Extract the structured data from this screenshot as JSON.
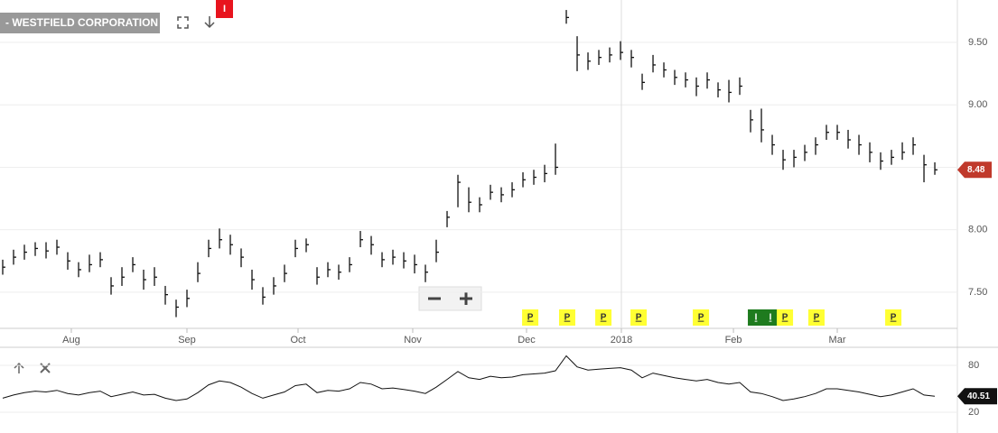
{
  "chart_data": {
    "type": "ohlc",
    "title": "- WESTFIELD CORPORATION",
    "badge": "I",
    "color": "#111111",
    "xlim": [
      -0.25,
      88.08
    ],
    "xticks": [
      {
        "value": 6.33,
        "label": "Aug"
      },
      {
        "value": 17,
        "label": "Sep"
      },
      {
        "value": 27.25,
        "label": "Oct"
      },
      {
        "value": 37.83,
        "label": "Nov"
      },
      {
        "value": 48.33,
        "label": "Dec"
      },
      {
        "value": 57.08,
        "label": "2018"
      },
      {
        "value": 67.42,
        "label": "Feb"
      },
      {
        "value": 77,
        "label": "Mar"
      }
    ],
    "ylim": [
      7.21,
      9.84
    ],
    "yticks": [
      {
        "value": 9.5,
        "label": "9.50"
      },
      {
        "value": 9,
        "label": "9.00"
      },
      {
        "value": 8.5,
        "label": "8.50"
      },
      {
        "value": 8,
        "label": "8.00"
      },
      {
        "value": 7.5,
        "label": "7.50"
      }
    ],
    "high": [
      7.76,
      7.84,
      7.88,
      7.9,
      7.9,
      7.92,
      7.82,
      7.74,
      7.8,
      7.82,
      7.62,
      7.7,
      7.78,
      7.68,
      7.7,
      7.55,
      7.44,
      7.52,
      7.74,
      7.92,
      8.01,
      7.96,
      7.85,
      7.68,
      7.54,
      7.62,
      7.72,
      7.92,
      7.93,
      7.7,
      7.74,
      7.72,
      7.78,
      7.99,
      7.95,
      7.82,
      7.84,
      7.82,
      7.8,
      7.72,
      7.92,
      8.15,
      8.44,
      8.34,
      8.26,
      8.36,
      8.34,
      8.38,
      8.46,
      8.48,
      8.52,
      8.69,
      9.76,
      9.55,
      9.42,
      9.44,
      9.46,
      9.51,
      9.44,
      9.25,
      9.4,
      9.34,
      9.28,
      9.26,
      9.22,
      9.26,
      9.18,
      9.2,
      9.22,
      8.96,
      8.97,
      8.76,
      8.64,
      8.64,
      8.68,
      8.74,
      8.84,
      8.84,
      8.8,
      8.76,
      8.7,
      8.62,
      8.64,
      8.7,
      8.74,
      8.6,
      8.54
    ],
    "low": [
      7.64,
      7.72,
      7.76,
      7.79,
      7.77,
      7.8,
      7.68,
      7.62,
      7.66,
      7.7,
      7.48,
      7.55,
      7.66,
      7.52,
      7.55,
      7.4,
      7.3,
      7.38,
      7.58,
      7.78,
      7.85,
      7.8,
      7.7,
      7.52,
      7.4,
      7.48,
      7.58,
      7.78,
      7.82,
      7.56,
      7.62,
      7.6,
      7.66,
      7.86,
      7.8,
      7.7,
      7.72,
      7.69,
      7.65,
      7.58,
      7.74,
      8.02,
      8.18,
      8.14,
      8.14,
      8.24,
      8.22,
      8.26,
      8.34,
      8.36,
      8.38,
      8.44,
      9.65,
      9.27,
      9.28,
      9.32,
      9.34,
      9.36,
      9.3,
      9.12,
      9.26,
      9.22,
      9.16,
      9.14,
      9.07,
      9.13,
      9.06,
      9.02,
      9.08,
      8.78,
      8.7,
      8.6,
      8.48,
      8.5,
      8.55,
      8.6,
      8.72,
      8.72,
      8.65,
      8.6,
      8.54,
      8.48,
      8.52,
      8.56,
      8.6,
      8.38,
      8.44
    ],
    "close": [
      7.7,
      7.78,
      7.82,
      7.85,
      7.83,
      7.86,
      7.75,
      7.68,
      7.72,
      7.76,
      7.55,
      7.62,
      7.72,
      7.6,
      7.62,
      7.48,
      7.38,
      7.45,
      7.65,
      7.85,
      7.92,
      7.88,
      7.78,
      7.6,
      7.46,
      7.55,
      7.65,
      7.85,
      7.88,
      7.62,
      7.68,
      7.66,
      7.72,
      7.92,
      7.88,
      7.76,
      7.78,
      7.75,
      7.72,
      7.66,
      7.82,
      8.1,
      8.38,
      8.22,
      8.2,
      8.3,
      8.28,
      8.32,
      8.4,
      8.42,
      8.45,
      8.5,
      9.7,
      9.4,
      9.35,
      9.38,
      9.4,
      9.42,
      9.38,
      9.18,
      9.32,
      9.28,
      9.22,
      9.2,
      9.15,
      9.2,
      9.12,
      9.1,
      9.15,
      8.88,
      8.8,
      8.68,
      8.56,
      8.58,
      8.62,
      8.68,
      8.78,
      8.78,
      8.72,
      8.68,
      8.62,
      8.55,
      8.58,
      8.62,
      8.68,
      8.52,
      8.48
    ],
    "last_price": 8.48,
    "last_color": "#c0392b",
    "events": [
      {
        "label": "P",
        "x": 48.67,
        "color": "#ffff33"
      },
      {
        "label": "P",
        "x": 52.08,
        "color": "#ffff33"
      },
      {
        "label": "P",
        "x": 55.42,
        "color": "#ffff33"
      },
      {
        "label": "P",
        "x": 58.67,
        "color": "#ffff33"
      },
      {
        "label": "P",
        "x": 64.42,
        "color": "#ffff33"
      },
      {
        "label": "I",
        "x": 69.5,
        "color": "#1e7b1e"
      },
      {
        "label": "I",
        "x": 70.83,
        "color": "#1e7b1e"
      },
      {
        "label": "P",
        "x": 72.17,
        "color": "#ffff33"
      },
      {
        "label": "P",
        "x": 75.08,
        "color": "#ffff33"
      },
      {
        "label": "P",
        "x": 82.17,
        "color": "#ffff33"
      }
    ],
    "indicator": {
      "type": "line",
      "color": "#111111",
      "ylim": [
        -6.5,
        103
      ],
      "yticks": [
        80,
        20
      ],
      "last": 40.51,
      "values": [
        38,
        42,
        45,
        47,
        46,
        48,
        44,
        42,
        45,
        47,
        40,
        43,
        46,
        42,
        43,
        38,
        35,
        37,
        45,
        55,
        60,
        58,
        52,
        44,
        38,
        42,
        46,
        54,
        56,
        45,
        48,
        47,
        50,
        58,
        56,
        50,
        51,
        49,
        47,
        44,
        52,
        62,
        72,
        64,
        62,
        66,
        64,
        65,
        68,
        69,
        70,
        73,
        92,
        78,
        74,
        75,
        76,
        77,
        74,
        64,
        70,
        67,
        64,
        62,
        60,
        62,
        58,
        56,
        58,
        46,
        44,
        40,
        35,
        37,
        40,
        44,
        50,
        50,
        48,
        46,
        43,
        40,
        42,
        46,
        50,
        42,
        40.51
      ]
    }
  }
}
